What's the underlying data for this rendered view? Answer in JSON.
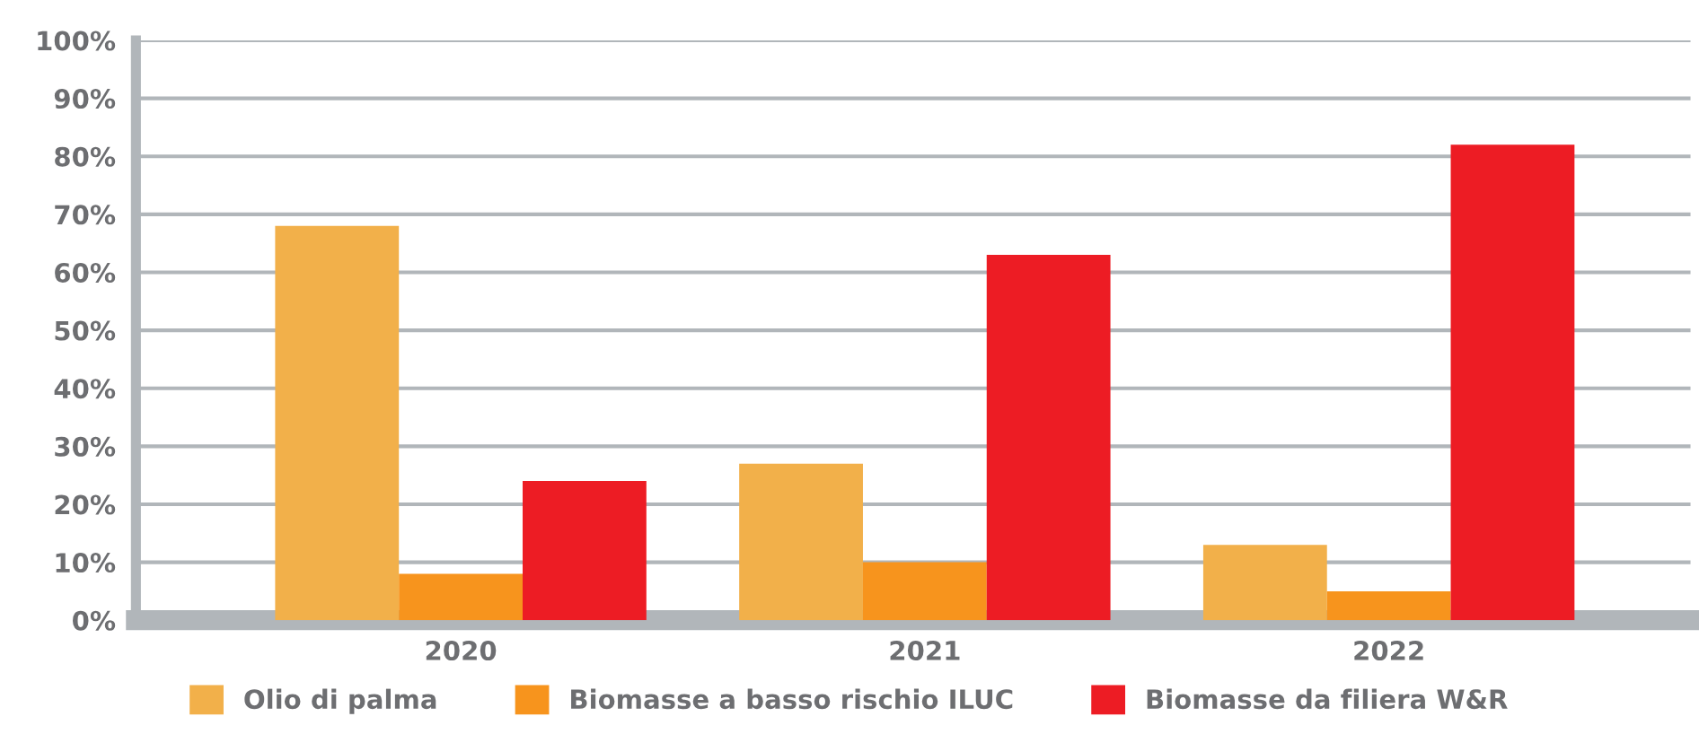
{
  "chart_data": {
    "type": "bar",
    "categories": [
      "2020",
      "2021",
      "2022"
    ],
    "series": [
      {
        "name": "Olio di palma",
        "color": "#f2b04a",
        "values": [
          68,
          27,
          13
        ]
      },
      {
        "name": "Biomasse a basso rischio ILUC",
        "color": "#f7941d",
        "values": [
          8,
          10,
          5
        ]
      },
      {
        "name": "Biomasse da filiera W&R",
        "color": "#ed1c24",
        "values": [
          24,
          63,
          82
        ]
      }
    ],
    "ylim": [
      0,
      100
    ],
    "yticks": [
      {
        "value": 0,
        "label": "0%"
      },
      {
        "value": 10,
        "label": "10%"
      },
      {
        "value": 20,
        "label": "20%"
      },
      {
        "value": 30,
        "label": "30%"
      },
      {
        "value": 40,
        "label": "40%"
      },
      {
        "value": 50,
        "label": "50%"
      },
      {
        "value": 60,
        "label": "60%"
      },
      {
        "value": 70,
        "label": "70%"
      },
      {
        "value": 80,
        "label": "80%"
      },
      {
        "value": 90,
        "label": "90%"
      },
      {
        "value": 100,
        "label": "100%"
      }
    ],
    "grid": "y",
    "legend": "bottom"
  }
}
